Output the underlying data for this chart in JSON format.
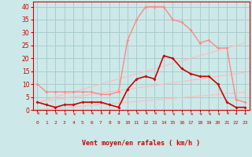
{
  "x": [
    0,
    1,
    2,
    3,
    4,
    5,
    6,
    7,
    8,
    9,
    10,
    11,
    12,
    13,
    14,
    15,
    16,
    17,
    18,
    19,
    20,
    21,
    22,
    23
  ],
  "rafales": [
    10,
    7,
    7,
    7,
    7,
    7,
    7,
    6,
    6,
    7,
    27,
    35,
    40,
    40,
    40,
    35,
    34,
    31,
    26,
    27,
    24,
    24,
    4,
    3
  ],
  "moyen": [
    3,
    2,
    1,
    2,
    2,
    3,
    3,
    3,
    2,
    1,
    8,
    12,
    13,
    12,
    21,
    20,
    16,
    14,
    13,
    13,
    10,
    3,
    1,
    1
  ],
  "trend_upper1": [
    3,
    3.5,
    4.0,
    4.5,
    5.0,
    5.5,
    6.0,
    6.5,
    7.0,
    7.5,
    8.0,
    8.5,
    9.0,
    9.5,
    10.0,
    10.5,
    11.0,
    11.5,
    12.0,
    12.5,
    13.0,
    13.5,
    14.0,
    14.5
  ],
  "trend_upper2": [
    3,
    4.0,
    5.0,
    6.0,
    7.0,
    8.0,
    9.0,
    10.0,
    11.0,
    12.0,
    13.0,
    14.0,
    15.0,
    16.0,
    17.0,
    18.0,
    19.0,
    20.0,
    21.0,
    22.0,
    23.0,
    24.0,
    25.0,
    26.0
  ],
  "trend_lower": [
    0,
    0.3,
    0.6,
    0.9,
    1.2,
    1.5,
    1.8,
    2.1,
    2.4,
    2.7,
    3.0,
    3.3,
    3.6,
    3.9,
    4.2,
    4.5,
    4.8,
    5.1,
    5.4,
    5.7,
    6.0,
    6.3,
    6.6,
    6.9
  ],
  "wind_dirs": [
    225,
    270,
    225,
    315,
    315,
    225,
    225,
    225,
    180,
    270,
    315,
    225,
    225,
    225,
    315,
    315,
    315,
    315,
    315,
    315,
    315,
    225,
    270,
    270
  ],
  "bg_color": "#cce8e8",
  "grid_color": "#aacccc",
  "line_rafales_color": "#ff8888",
  "line_moyen_color": "#cc0000",
  "line_trend_color": "#ffbbbb",
  "arrow_color": "#cc0000",
  "xlabel": "Vent moyen/en rafales ( km/h )",
  "ylim": [
    0,
    42
  ],
  "xlim": [
    -0.5,
    23.5
  ],
  "yticks": [
    0,
    5,
    10,
    15,
    20,
    25,
    30,
    35,
    40
  ],
  "xticks": [
    0,
    1,
    2,
    3,
    4,
    5,
    6,
    7,
    8,
    9,
    10,
    11,
    12,
    13,
    14,
    15,
    16,
    17,
    18,
    19,
    20,
    21,
    22,
    23
  ]
}
